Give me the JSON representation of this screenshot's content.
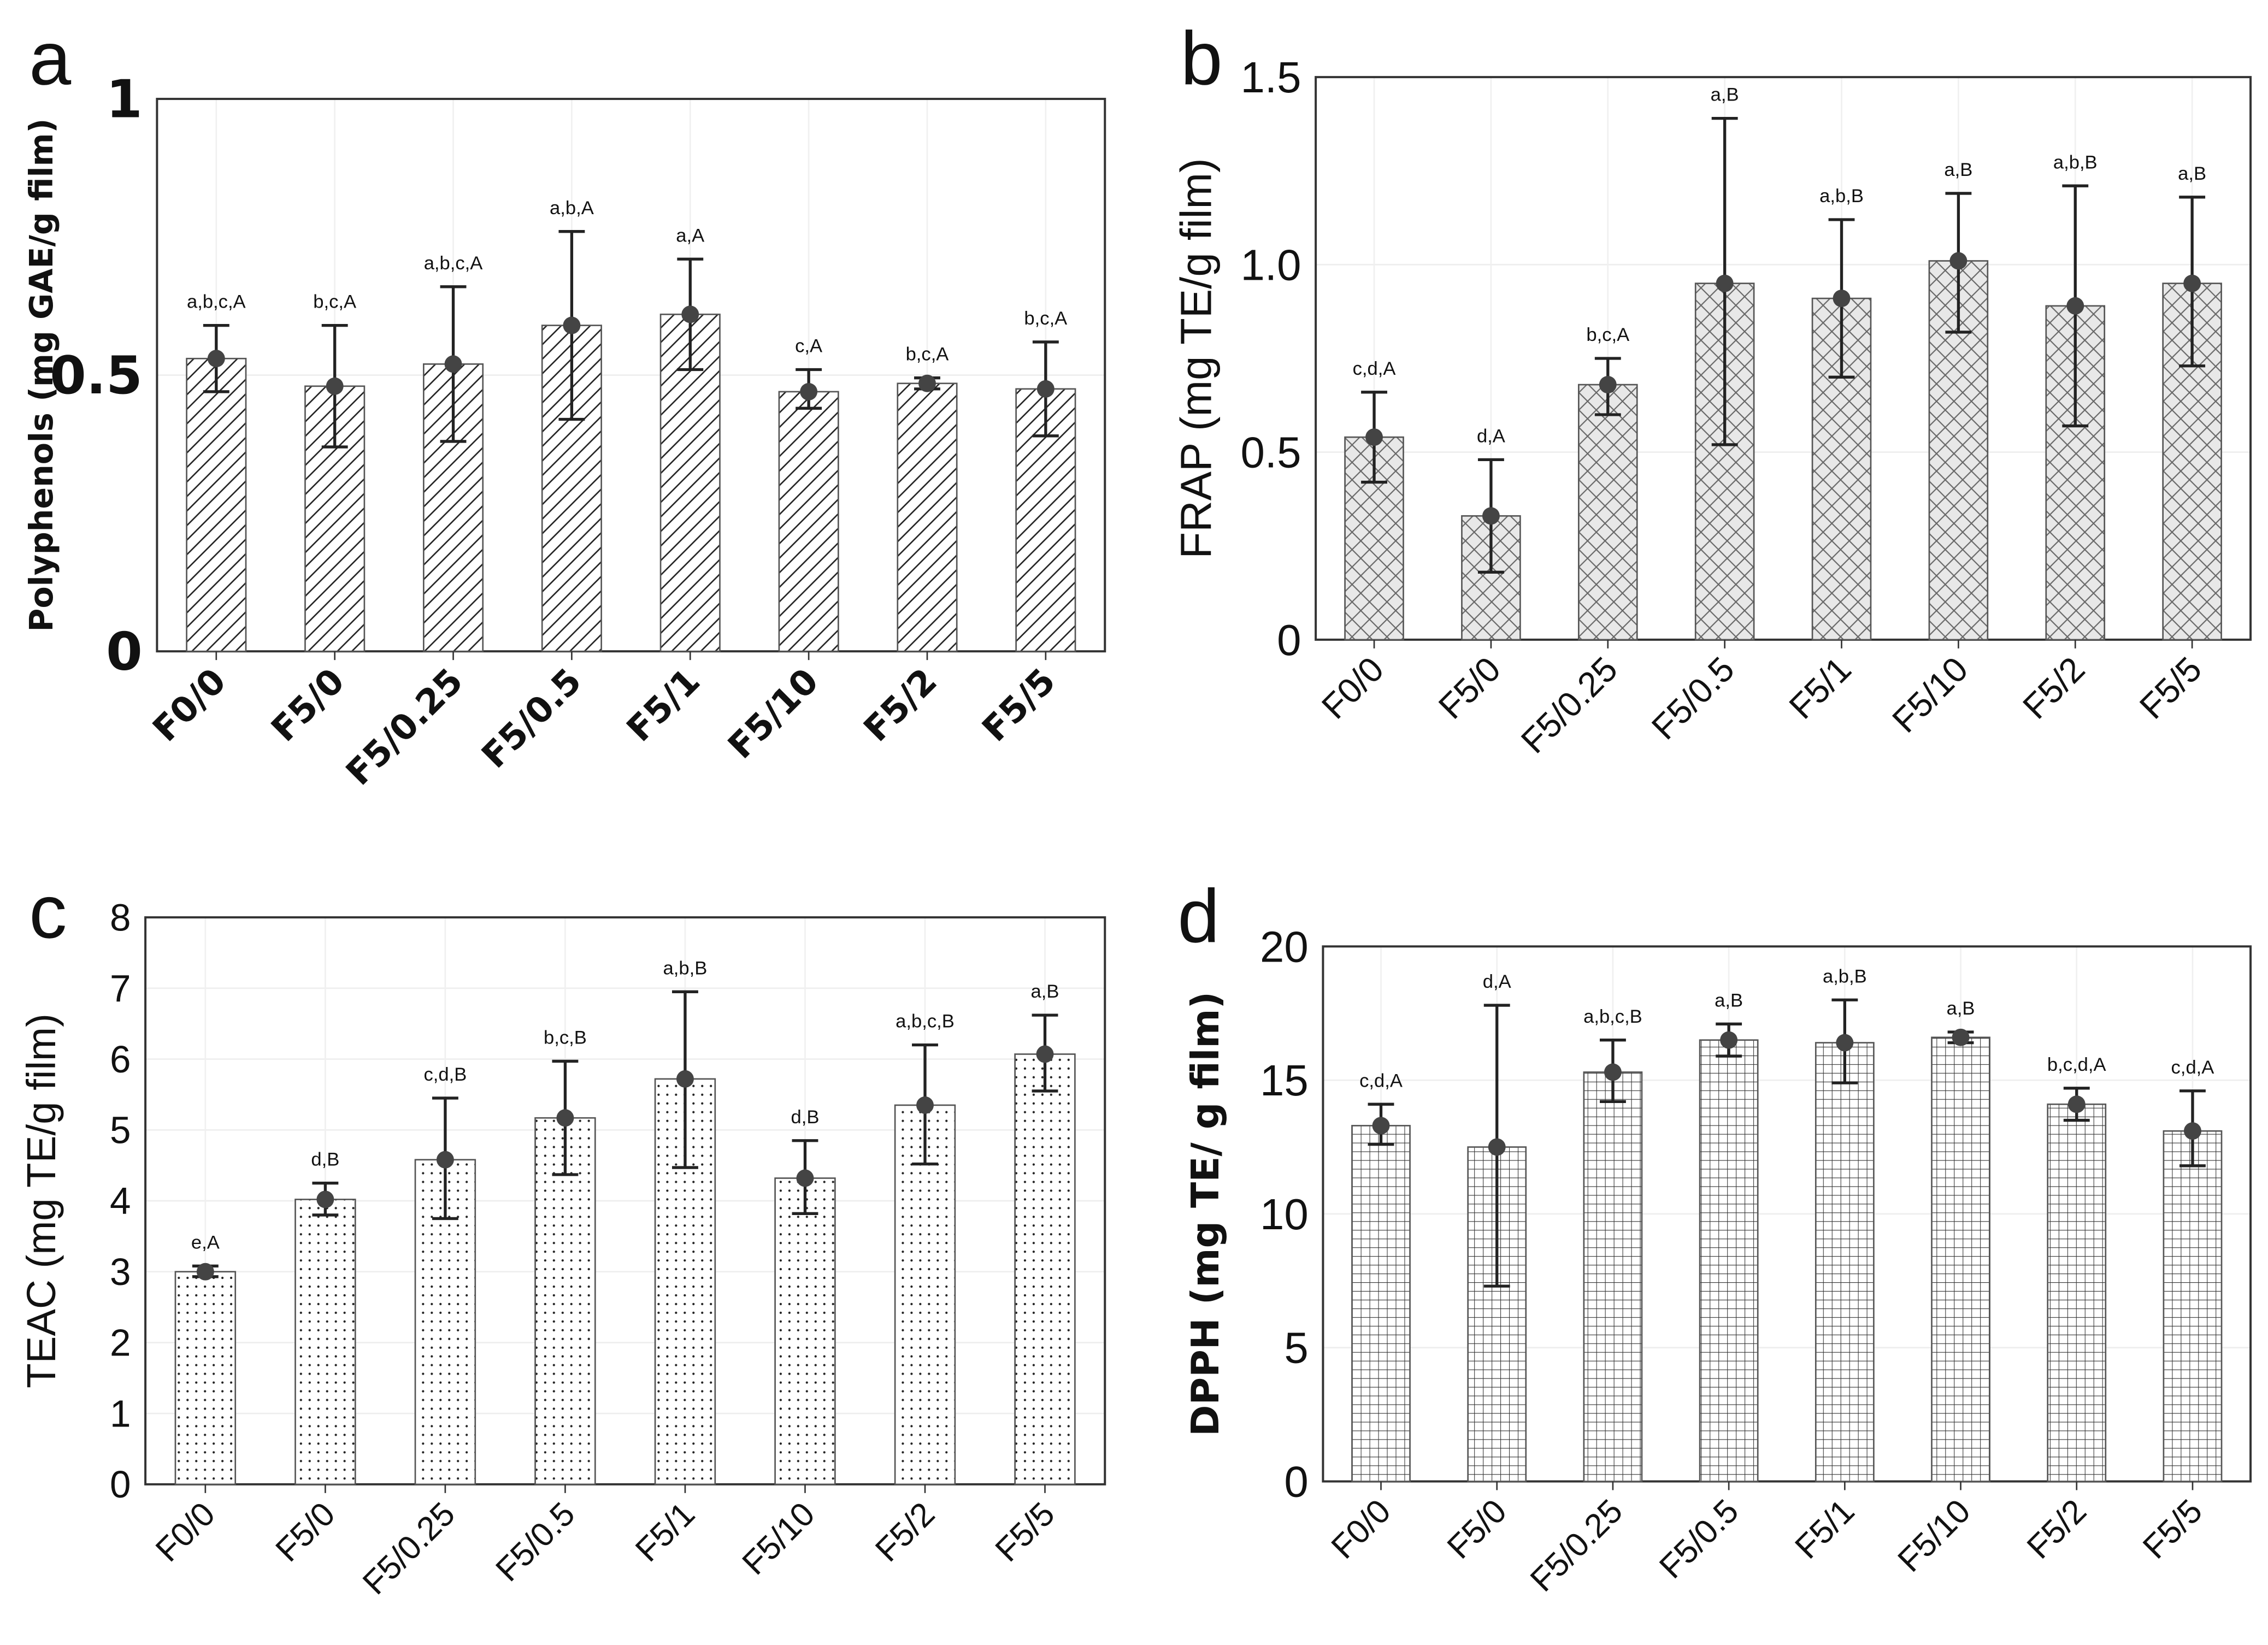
{
  "chart_data": [
    {
      "panel": "a",
      "type": "bar",
      "ylabel": "Polyphenols (mg GAE/g film)",
      "ylim": [
        0,
        1
      ],
      "yticks": [
        "0",
        "0.5",
        "1"
      ],
      "ytick_values": [
        0,
        0.5,
        1
      ],
      "categories": [
        "F0/0",
        "F5/0",
        "F5/0.25",
        "F5/0.5",
        "F5/1",
        "F5/10",
        "F5/2",
        "F5/5"
      ],
      "values": [
        0.53,
        0.48,
        0.52,
        0.59,
        0.61,
        0.47,
        0.485,
        0.475
      ],
      "err_low": [
        0.47,
        0.37,
        0.38,
        0.42,
        0.51,
        0.44,
        0.475,
        0.39
      ],
      "err_high": [
        0.59,
        0.59,
        0.66,
        0.76,
        0.71,
        0.51,
        0.495,
        0.56
      ],
      "annotations": [
        "a,b,c,A",
        "b,c,A",
        "a,b,c,A",
        "a,b,A",
        "a,A",
        "c,A",
        "b,c,A",
        "b,c,A"
      ],
      "pattern": "diagonal-hatch",
      "bar_fill": "#ffffff",
      "grid": true
    },
    {
      "panel": "b",
      "type": "bar",
      "ylabel": "FRAP (mg TE/g film)",
      "ylim": [
        0,
        1.5
      ],
      "yticks": [
        "0",
        "0.5",
        "1.0",
        "1.5"
      ],
      "ytick_values": [
        0,
        0.5,
        1.0,
        1.5
      ],
      "categories": [
        "F0/0",
        "F5/0",
        "F5/0.25",
        "F5/0.5",
        "F5/1",
        "F5/10",
        "F5/2",
        "F5/5"
      ],
      "values": [
        0.54,
        0.33,
        0.68,
        0.95,
        0.91,
        1.01,
        0.89,
        0.95
      ],
      "err_low": [
        0.42,
        0.18,
        0.6,
        0.52,
        0.7,
        0.82,
        0.57,
        0.73
      ],
      "err_high": [
        0.66,
        0.48,
        0.75,
        1.39,
        1.12,
        1.19,
        1.21,
        1.18
      ],
      "annotations": [
        "c,d,A",
        "d,A",
        "b,c,A",
        "a,B",
        "a,b,B",
        "a,B",
        "a,b,B",
        "a,B"
      ],
      "pattern": "crosshatch",
      "bar_fill": "#e8e8e8",
      "grid": true
    },
    {
      "panel": "c",
      "type": "bar",
      "ylabel": "TEAC (mg TE/g film)",
      "ylim": [
        0,
        8
      ],
      "yticks": [
        "0",
        "1",
        "2",
        "3",
        "4",
        "5",
        "6",
        "7",
        "8"
      ],
      "ytick_values": [
        0,
        1,
        2,
        3,
        4,
        5,
        6,
        7,
        8
      ],
      "categories": [
        "F0/0",
        "F5/0",
        "F5/0.25",
        "F5/0.5",
        "F5/1",
        "F5/10",
        "F5/2",
        "F5/5"
      ],
      "values": [
        3.0,
        4.02,
        4.58,
        5.17,
        5.72,
        4.32,
        5.35,
        6.07
      ],
      "err_low": [
        2.93,
        3.8,
        3.75,
        4.37,
        4.47,
        3.82,
        4.52,
        5.55
      ],
      "err_high": [
        3.08,
        4.25,
        5.45,
        5.97,
        6.95,
        4.85,
        6.2,
        6.62
      ],
      "annotations": [
        "e,A",
        "d,B",
        "c,d,B",
        "b,c,B",
        "a,b,B",
        "d,B",
        "a,b,c,B",
        "a,B"
      ],
      "pattern": "dots",
      "bar_fill": "#ffffff",
      "grid": true
    },
    {
      "panel": "d",
      "type": "bar",
      "ylabel": "DPPH (mg TE/ g film)",
      "ylim": [
        0,
        20
      ],
      "yticks": [
        "0",
        "5",
        "10",
        "15",
        "20"
      ],
      "ytick_values": [
        0,
        5,
        10,
        15,
        20
      ],
      "categories": [
        "F0/0",
        "F5/0",
        "F5/0.25",
        "F5/0.5",
        "F5/1",
        "F5/10",
        "F5/2",
        "F5/5"
      ],
      "values": [
        13.3,
        12.5,
        15.3,
        16.5,
        16.4,
        16.6,
        14.1,
        13.1
      ],
      "err_low": [
        12.6,
        7.3,
        14.2,
        15.9,
        14.9,
        16.4,
        13.5,
        11.8
      ],
      "err_high": [
        14.1,
        17.8,
        16.5,
        17.1,
        18.0,
        16.8,
        14.7,
        14.6
      ],
      "annotations": [
        "c,d,A",
        "d,A",
        "a,b,c,B",
        "a,B",
        "a,b,B",
        "a,B",
        "b,c,d,A",
        "c,d,A"
      ],
      "pattern": "grid",
      "bar_fill": "#ffffff",
      "grid": true
    }
  ],
  "colors": {
    "marker": "#444444",
    "axis": "#333333",
    "bar_edge": "#555555"
  }
}
